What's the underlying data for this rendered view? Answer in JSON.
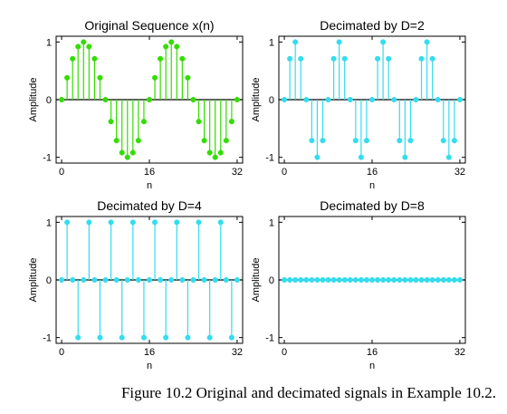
{
  "figure": {
    "caption": "Figure 10.2 Original and decimated signals in Example 10.2."
  },
  "chart_data": [
    {
      "type": "stem",
      "title": "Original Sequence x(n)",
      "xlabel": "n",
      "ylabel": "Amplitude",
      "xlim": [
        -1,
        33
      ],
      "ylim": [
        -1.1,
        1.1
      ],
      "xticks": [
        0,
        16,
        32
      ],
      "yticks": [
        -1,
        0,
        1
      ],
      "color": "#33dd00",
      "x": [
        0,
        1,
        2,
        3,
        4,
        5,
        6,
        7,
        8,
        9,
        10,
        11,
        12,
        13,
        14,
        15,
        16,
        17,
        18,
        19,
        20,
        21,
        22,
        23,
        24,
        25,
        26,
        27,
        28,
        29,
        30,
        31,
        32
      ],
      "values": [
        0,
        0.38,
        0.71,
        0.92,
        1,
        0.92,
        0.71,
        0.38,
        0,
        -0.38,
        -0.71,
        -0.92,
        -1,
        -0.92,
        -0.71,
        -0.38,
        0,
        0.38,
        0.71,
        0.92,
        1,
        0.92,
        0.71,
        0.38,
        0,
        -0.38,
        -0.71,
        -0.92,
        -1,
        -0.92,
        -0.71,
        -0.38,
        0
      ]
    },
    {
      "type": "stem",
      "title": "Decimated by D=2",
      "xlabel": "n",
      "ylabel": "Amplitude",
      "xlim": [
        -1,
        33
      ],
      "ylim": [
        -1.1,
        1.1
      ],
      "xticks": [
        0,
        16,
        32
      ],
      "yticks": [
        -1,
        0,
        1
      ],
      "color": "#33ddee",
      "x": [
        0,
        1,
        2,
        3,
        4,
        5,
        6,
        7,
        8,
        9,
        10,
        11,
        12,
        13,
        14,
        15,
        16,
        17,
        18,
        19,
        20,
        21,
        22,
        23,
        24,
        25,
        26,
        27,
        28,
        29,
        30,
        31,
        32
      ],
      "values": [
        0,
        0.71,
        1,
        0.71,
        0,
        -0.71,
        -1,
        -0.71,
        0,
        0.71,
        1,
        0.71,
        0,
        -0.71,
        -1,
        -0.71,
        0,
        0.71,
        1,
        0.71,
        0,
        -0.71,
        -1,
        -0.71,
        0,
        0.71,
        1,
        0.71,
        0,
        -0.71,
        -1,
        -0.71,
        0
      ]
    },
    {
      "type": "stem",
      "title": "Decimated by D=4",
      "xlabel": "n",
      "ylabel": "Amplitude",
      "xlim": [
        -1,
        33
      ],
      "ylim": [
        -1.1,
        1.1
      ],
      "xticks": [
        0,
        16,
        32
      ],
      "yticks": [
        -1,
        0,
        1
      ],
      "color": "#33ddee",
      "x": [
        0,
        1,
        2,
        3,
        4,
        5,
        6,
        7,
        8,
        9,
        10,
        11,
        12,
        13,
        14,
        15,
        16,
        17,
        18,
        19,
        20,
        21,
        22,
        23,
        24,
        25,
        26,
        27,
        28,
        29,
        30,
        31,
        32
      ],
      "values": [
        0,
        1,
        0,
        -1,
        0,
        1,
        0,
        -1,
        0,
        1,
        0,
        -1,
        0,
        1,
        0,
        -1,
        0,
        1,
        0,
        -1,
        0,
        1,
        0,
        -1,
        0,
        1,
        0,
        -1,
        0,
        1,
        0,
        -1,
        0
      ]
    },
    {
      "type": "stem",
      "title": "Decimated by D=8",
      "xlabel": "n",
      "ylabel": "Amplitude",
      "xlim": [
        -1,
        33
      ],
      "ylim": [
        -1.1,
        1.1
      ],
      "xticks": [
        0,
        16,
        32
      ],
      "yticks": [
        -1,
        0,
        1
      ],
      "color": "#33ddee",
      "x": [
        0,
        1,
        2,
        3,
        4,
        5,
        6,
        7,
        8,
        9,
        10,
        11,
        12,
        13,
        14,
        15,
        16,
        17,
        18,
        19,
        20,
        21,
        22,
        23,
        24,
        25,
        26,
        27,
        28,
        29,
        30,
        31,
        32
      ],
      "values": [
        0,
        0,
        0,
        0,
        0,
        0,
        0,
        0,
        0,
        0,
        0,
        0,
        0,
        0,
        0,
        0,
        0,
        0,
        0,
        0,
        0,
        0,
        0,
        0,
        0,
        0,
        0,
        0,
        0,
        0,
        0,
        0,
        0
      ]
    }
  ]
}
